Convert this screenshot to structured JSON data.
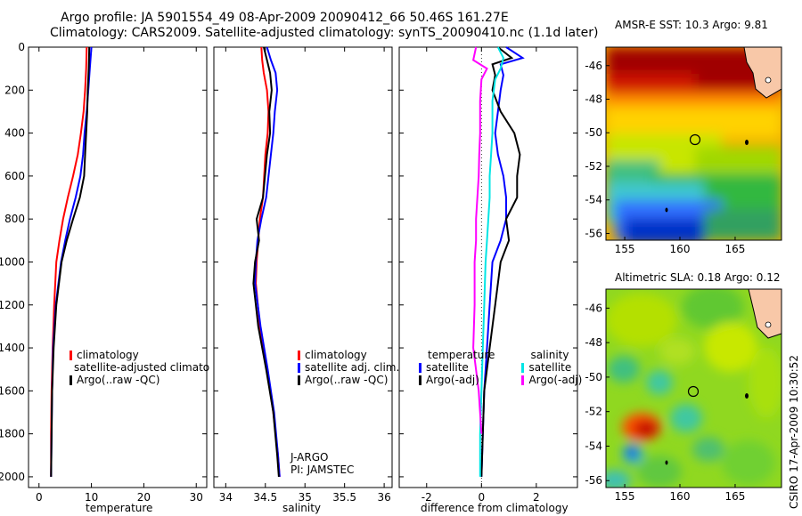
{
  "titles": {
    "line1": "Argo profile: JA 5901554_49 08-Apr-2009 20090412_66 50.46S 161.27E",
    "line2": "Climatology: CARS2009. Satellite-adjusted climatology: synTS_20090410.nc (1.1d later)"
  },
  "side_label": "CSIRO 17-Apr-2009 10:30:52",
  "pi_text": {
    "line1": "J-ARGO",
    "line2": "PI: JAMSTEC"
  },
  "colors": {
    "climatology": "#ff0000",
    "satellite": "#0000ff",
    "argo": "#000000",
    "sat_salinity": "#00e5e5",
    "argo_salinity": "#ff00ff"
  },
  "legends": {
    "temperature": {
      "items": [
        {
          "label": "climatology",
          "color": "#ff0000"
        },
        {
          "label": "satellite-adjusted climatology",
          "color": "#0000ff"
        },
        {
          "label": "Argo(..raw -QC)",
          "color": "#000000"
        }
      ]
    },
    "salinity": {
      "items": [
        {
          "label": "climatology",
          "color": "#ff0000"
        },
        {
          "label": "satellite adj. clim.",
          "color": "#0000ff"
        },
        {
          "label": "Argo(..raw -QC)",
          "color": "#000000"
        }
      ]
    },
    "difference": {
      "col1_header": "temperature",
      "col2_header": "salinity",
      "col1": [
        {
          "label": "satellite",
          "color": "#0000ff"
        },
        {
          "label": "Argo(-adj)",
          "color": "#000000"
        }
      ],
      "col2": [
        {
          "label": "satellite",
          "color": "#00e5e5"
        },
        {
          "label": "Argo(-adj)",
          "color": "#ff00ff"
        }
      ]
    }
  },
  "chart_data": [
    {
      "type": "line",
      "xlabel": "temperature",
      "xlim": [
        -2,
        32
      ],
      "xticks": [
        0,
        10,
        20,
        30
      ],
      "ylim": [
        0,
        2050
      ],
      "yticks": [
        0,
        200,
        400,
        600,
        800,
        1000,
        1200,
        1400,
        1600,
        1800,
        2000
      ],
      "y_reversed": true,
      "series": [
        {
          "name": "climatology",
          "color": "#ff0000",
          "x": [
            9.1,
            9.0,
            8.8,
            8.5,
            8.0,
            7.4,
            6.5,
            5.5,
            4.6,
            3.9,
            3.3,
            2.9,
            2.6,
            2.4,
            2.3,
            2.3
          ],
          "y": [
            0,
            100,
            200,
            300,
            400,
            500,
            600,
            700,
            800,
            900,
            1000,
            1200,
            1400,
            1600,
            1800,
            2000
          ]
        },
        {
          "name": "satellite-adjusted climatology",
          "color": "#0000ff",
          "x": [
            10.0,
            9.7,
            9.4,
            9.1,
            8.7,
            8.4,
            7.9,
            7.0,
            5.9,
            5.0,
            4.2,
            3.2,
            2.7,
            2.5,
            2.4,
            2.3
          ],
          "y": [
            0,
            100,
            200,
            300,
            400,
            500,
            600,
            700,
            800,
            900,
            1000,
            1200,
            1400,
            1600,
            1800,
            2000
          ]
        },
        {
          "name": "Argo(..raw -QC)",
          "color": "#000000",
          "x": [
            9.6,
            9.5,
            9.3,
            9.2,
            9.0,
            8.8,
            8.6,
            7.8,
            6.5,
            5.3,
            4.3,
            3.3,
            2.8,
            2.5,
            2.4,
            2.3
          ],
          "y": [
            0,
            100,
            200,
            300,
            400,
            500,
            600,
            700,
            800,
            900,
            1000,
            1200,
            1400,
            1600,
            1800,
            2000
          ]
        }
      ]
    },
    {
      "type": "line",
      "xlabel": "salinity",
      "xlim": [
        33.85,
        36.1
      ],
      "xticks": [
        34,
        34.5,
        35,
        35.5,
        36
      ],
      "xtick_labels": [
        "34",
        "34.5",
        "35",
        "35.5",
        "36"
      ],
      "ylim": [
        0,
        2050
      ],
      "y_reversed": true,
      "series": [
        {
          "name": "climatology",
          "color": "#ff0000",
          "x": [
            34.45,
            34.46,
            34.48,
            34.52,
            34.54,
            34.53,
            34.5,
            34.47,
            34.43,
            34.41,
            34.39,
            34.38,
            34.43,
            34.52,
            34.6,
            34.66,
            34.68
          ],
          "y": [
            0,
            60,
            120,
            200,
            300,
            400,
            500,
            700,
            800,
            900,
            1000,
            1100,
            1300,
            1500,
            1700,
            1900,
            2000
          ]
        },
        {
          "name": "satellite adj. clim.",
          "color": "#0000ff",
          "x": [
            34.52,
            34.57,
            34.63,
            34.65,
            34.62,
            34.6,
            34.57,
            34.51,
            34.45,
            34.4,
            34.38,
            34.37,
            34.44,
            34.53,
            34.61,
            34.66,
            34.68
          ],
          "y": [
            0,
            60,
            120,
            200,
            300,
            400,
            500,
            700,
            800,
            900,
            1000,
            1100,
            1300,
            1500,
            1700,
            1900,
            2000
          ]
        },
        {
          "name": "Argo(..raw -QC)",
          "color": "#000000",
          "x": [
            34.48,
            34.52,
            34.56,
            34.58,
            34.55,
            34.56,
            34.52,
            34.47,
            34.39,
            34.42,
            34.37,
            34.35,
            34.41,
            34.51,
            34.6,
            34.65,
            34.67
          ],
          "y": [
            0,
            60,
            120,
            200,
            300,
            400,
            500,
            700,
            800,
            900,
            1000,
            1100,
            1300,
            1500,
            1700,
            1900,
            2000
          ]
        }
      ]
    },
    {
      "type": "line",
      "xlabel": "difference from climatology",
      "xlim": [
        -3,
        3.5
      ],
      "xticks": [
        -2,
        0,
        2
      ],
      "ylim": [
        0,
        2050
      ],
      "y_reversed": true,
      "series": [
        {
          "name": "temperature satellite",
          "color": "#0000ff",
          "x": [
            0.9,
            1.5,
            0.7,
            0.8,
            0.7,
            0.6,
            0.5,
            0.6,
            0.8,
            0.9,
            0.9,
            0.7,
            0.4,
            0.3,
            0.2,
            0.1,
            0.05,
            0.0
          ],
          "y": [
            0,
            50,
            80,
            130,
            200,
            300,
            400,
            500,
            600,
            700,
            800,
            900,
            1000,
            1200,
            1400,
            1600,
            1800,
            2000
          ]
        },
        {
          "name": "temperature Argo(-adj)",
          "color": "#000000",
          "x": [
            0.6,
            1.1,
            0.4,
            0.5,
            0.4,
            0.7,
            1.2,
            1.4,
            1.3,
            1.3,
            0.9,
            1.0,
            0.7,
            0.5,
            0.3,
            0.1,
            0.05,
            0.0
          ],
          "y": [
            0,
            50,
            80,
            130,
            200,
            300,
            400,
            500,
            600,
            700,
            800,
            900,
            1000,
            1200,
            1400,
            1600,
            1800,
            2000
          ]
        },
        {
          "name": "salinity satellite",
          "color": "#00e5e5",
          "x": [
            0.6,
            0.8,
            0.7,
            0.5,
            0.4,
            0.4,
            0.35,
            0.3,
            0.3,
            0.25,
            0.2,
            0.15,
            0.1,
            0.05,
            0.0,
            -0.05,
            -0.05
          ],
          "y": [
            0,
            50,
            100,
            150,
            250,
            400,
            500,
            600,
            700,
            800,
            900,
            1000,
            1200,
            1400,
            1600,
            1800,
            2000
          ]
        },
        {
          "name": "salinity Argo(-adj)",
          "color": "#ff00ff",
          "x": [
            -0.2,
            -0.3,
            0.2,
            0.0,
            -0.05,
            -0.05,
            -0.08,
            -0.1,
            -0.15,
            -0.2,
            -0.2,
            -0.25,
            -0.25,
            -0.3,
            -0.1,
            0.0
          ],
          "y": [
            0,
            60,
            100,
            150,
            250,
            400,
            500,
            600,
            700,
            800,
            900,
            1000,
            1200,
            1400,
            1600,
            1800
          ]
        }
      ]
    },
    {
      "type": "heatmap",
      "title": "AMSR-E SST: 10.3 Argo: 9.81",
      "xlim": [
        153.3,
        169.2
      ],
      "ylim": [
        -56.4,
        -44.9
      ],
      "xticks": [
        155,
        160,
        165
      ],
      "yticks": [
        -46,
        -48,
        -50,
        -52,
        -54,
        -56
      ],
      "argo_position": {
        "lon": 161.27,
        "lat": -50.46
      }
    },
    {
      "type": "heatmap",
      "title": "Altimetric SLA: 0.18 Argo: 0.12",
      "xlim": [
        153.3,
        169.2
      ],
      "ylim": [
        -56.4,
        -44.9
      ],
      "xticks": [
        155,
        160,
        165
      ],
      "yticks": [
        -46,
        -48,
        -50,
        -52,
        -54,
        -56
      ],
      "argo_position": {
        "lon": 161.27,
        "lat": -50.46
      }
    }
  ]
}
